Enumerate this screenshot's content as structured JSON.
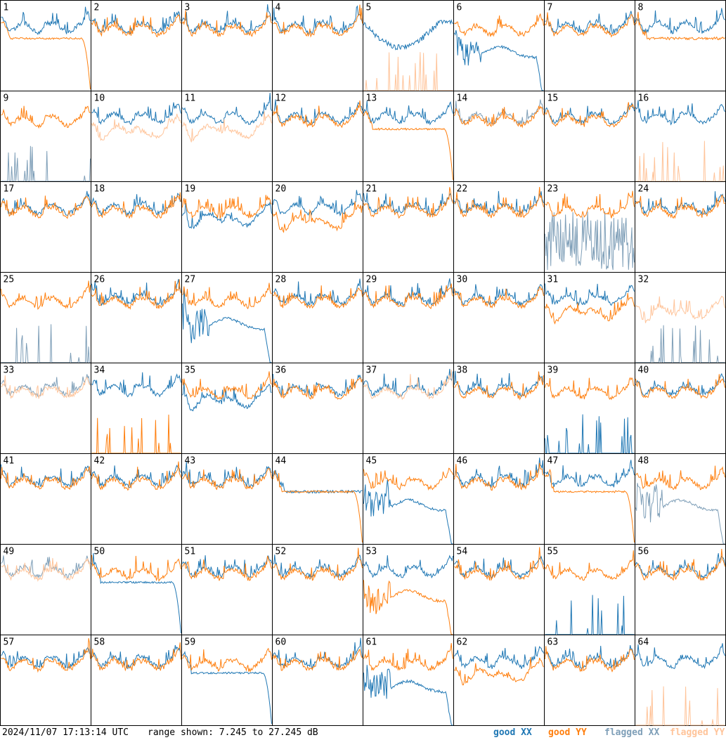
{
  "chart_data": {
    "type": "line",
    "layout": "8x8 small multiples",
    "footer": {
      "timestamp": "2024/11/07 17:13:14 UTC",
      "range_text": "range shown: 7.245 to 27.245 dB"
    },
    "ylim": [
      7.245,
      27.245
    ],
    "yunit": "dB",
    "legend": [
      {
        "label": "good XX",
        "color": "#1f77b4"
      },
      {
        "label": "good YY",
        "color": "#ff7f0e"
      },
      {
        "label": "flagged XX",
        "color": "#7f9fb8"
      },
      {
        "label": "flagged YY",
        "color": "#ffc49a"
      }
    ],
    "colors": {
      "good_xx": "#1f77b4",
      "good_yy": "#ff7f0e",
      "flagged_xx": "#7f9fb8",
      "flagged_yy": "#ffc49a"
    },
    "tiles": [
      {
        "id": "1",
        "xx": "good",
        "yy": "good",
        "xx_mode": "normal",
        "yy_mode": "rolloff"
      },
      {
        "id": "2",
        "xx": "good",
        "yy": "good",
        "xx_mode": "normal",
        "yy_mode": "normal"
      },
      {
        "id": "3",
        "xx": "good",
        "yy": "good",
        "xx_mode": "normal",
        "yy_mode": "normal"
      },
      {
        "id": "4",
        "xx": "good",
        "yy": "good",
        "xx_mode": "normal",
        "yy_mode": "normal"
      },
      {
        "id": "5",
        "xx": "good",
        "yy": "flagged",
        "xx_mode": "bowl",
        "yy_mode": "spikes"
      },
      {
        "id": "6",
        "xx": "good",
        "yy": "good",
        "xx_mode": "dip",
        "yy_mode": "normal"
      },
      {
        "id": "7",
        "xx": "good",
        "yy": "good",
        "xx_mode": "normal",
        "yy_mode": "normal"
      },
      {
        "id": "8",
        "xx": "good",
        "yy": "good",
        "xx_mode": "normal",
        "yy_mode": "flat"
      },
      {
        "id": "9",
        "xx": "flagged",
        "yy": "good",
        "xx_mode": "spikes",
        "yy_mode": "normal"
      },
      {
        "id": "10",
        "xx": "good",
        "yy": "flagged",
        "xx_mode": "normal",
        "yy_mode": "low"
      },
      {
        "id": "11",
        "xx": "good",
        "yy": "flagged",
        "xx_mode": "normal",
        "yy_mode": "low"
      },
      {
        "id": "12",
        "xx": "good",
        "yy": "good",
        "xx_mode": "normal",
        "yy_mode": "normal"
      },
      {
        "id": "13",
        "xx": "good",
        "yy": "good",
        "xx_mode": "normal",
        "yy_mode": "rolloff"
      },
      {
        "id": "14",
        "xx": "flagged",
        "yy": "good",
        "xx_mode": "normal",
        "yy_mode": "normal"
      },
      {
        "id": "15",
        "xx": "good",
        "yy": "good",
        "xx_mode": "normal",
        "yy_mode": "normal"
      },
      {
        "id": "16",
        "xx": "good",
        "yy": "flagged",
        "xx_mode": "normal",
        "yy_mode": "spikes"
      },
      {
        "id": "17",
        "xx": "good",
        "yy": "good",
        "xx_mode": "normal",
        "yy_mode": "normal"
      },
      {
        "id": "18",
        "xx": "good",
        "yy": "good",
        "xx_mode": "normal",
        "yy_mode": "normal"
      },
      {
        "id": "19",
        "xx": "good",
        "yy": "good",
        "xx_mode": "low",
        "yy_mode": "normal"
      },
      {
        "id": "20",
        "xx": "good",
        "yy": "good",
        "xx_mode": "normal",
        "yy_mode": "low"
      },
      {
        "id": "21",
        "xx": "good",
        "yy": "good",
        "xx_mode": "normal",
        "yy_mode": "normal"
      },
      {
        "id": "22",
        "xx": "good",
        "yy": "good",
        "xx_mode": "normal",
        "yy_mode": "normal"
      },
      {
        "id": "23",
        "xx": "flagged",
        "yy": "good",
        "xx_mode": "noise",
        "yy_mode": "normal"
      },
      {
        "id": "24",
        "xx": "good",
        "yy": "good",
        "xx_mode": "normal",
        "yy_mode": "normal"
      },
      {
        "id": "25",
        "xx": "flagged",
        "yy": "good",
        "xx_mode": "spikes",
        "yy_mode": "normal"
      },
      {
        "id": "26",
        "xx": "good",
        "yy": "good",
        "xx_mode": "normal",
        "yy_mode": "normal"
      },
      {
        "id": "27",
        "xx": "good",
        "yy": "good",
        "xx_mode": "dip",
        "yy_mode": "normal"
      },
      {
        "id": "28",
        "xx": "good",
        "yy": "good",
        "xx_mode": "normal",
        "yy_mode": "normal"
      },
      {
        "id": "29",
        "xx": "good",
        "yy": "good",
        "xx_mode": "normal",
        "yy_mode": "normal"
      },
      {
        "id": "30",
        "xx": "good",
        "yy": "good",
        "xx_mode": "normal",
        "yy_mode": "normal"
      },
      {
        "id": "31",
        "xx": "good",
        "yy": "good",
        "xx_mode": "normal",
        "yy_mode": "low"
      },
      {
        "id": "32",
        "xx": "flagged",
        "yy": "flagged",
        "xx_mode": "spikes",
        "yy_mode": "low"
      },
      {
        "id": "33",
        "xx": "flagged",
        "yy": "flagged",
        "xx_mode": "normal",
        "yy_mode": "normal"
      },
      {
        "id": "34",
        "xx": "good",
        "yy": "good",
        "xx_mode": "normal",
        "yy_mode": "spikes"
      },
      {
        "id": "35",
        "xx": "good",
        "yy": "good",
        "xx_mode": "low",
        "yy_mode": "normal"
      },
      {
        "id": "36",
        "xx": "good",
        "yy": "good",
        "xx_mode": "normal",
        "yy_mode": "normal"
      },
      {
        "id": "37",
        "xx": "good",
        "yy": "flagged",
        "xx_mode": "normal",
        "yy_mode": "normal"
      },
      {
        "id": "38",
        "xx": "good",
        "yy": "good",
        "xx_mode": "normal",
        "yy_mode": "normal"
      },
      {
        "id": "39",
        "xx": "good",
        "yy": "good",
        "xx_mode": "spikes",
        "yy_mode": "normal"
      },
      {
        "id": "40",
        "xx": "good",
        "yy": "good",
        "xx_mode": "normal",
        "yy_mode": "normal"
      },
      {
        "id": "41",
        "xx": "good",
        "yy": "good",
        "xx_mode": "normal",
        "yy_mode": "normal"
      },
      {
        "id": "42",
        "xx": "good",
        "yy": "good",
        "xx_mode": "normal",
        "yy_mode": "normal"
      },
      {
        "id": "43",
        "xx": "good",
        "yy": "good",
        "xx_mode": "normal",
        "yy_mode": "normal"
      },
      {
        "id": "44",
        "xx": "good",
        "yy": "good",
        "xx_mode": "flat",
        "yy_mode": "rolloff"
      },
      {
        "id": "45",
        "xx": "good",
        "yy": "good",
        "xx_mode": "dip",
        "yy_mode": "normal"
      },
      {
        "id": "46",
        "xx": "good",
        "yy": "good",
        "xx_mode": "normal",
        "yy_mode": "normal"
      },
      {
        "id": "47",
        "xx": "good",
        "yy": "good",
        "xx_mode": "normal",
        "yy_mode": "rolloff"
      },
      {
        "id": "48",
        "xx": "flagged",
        "yy": "good",
        "xx_mode": "dip",
        "yy_mode": "normal"
      },
      {
        "id": "49",
        "xx": "flagged",
        "yy": "flagged",
        "xx_mode": "normal",
        "yy_mode": "normal"
      },
      {
        "id": "50",
        "xx": "good",
        "yy": "good",
        "xx_mode": "rolloff",
        "yy_mode": "normal"
      },
      {
        "id": "51",
        "xx": "good",
        "yy": "good",
        "xx_mode": "normal",
        "yy_mode": "normal"
      },
      {
        "id": "52",
        "xx": "good",
        "yy": "good",
        "xx_mode": "normal",
        "yy_mode": "normal"
      },
      {
        "id": "53",
        "xx": "good",
        "yy": "good",
        "xx_mode": "normal",
        "yy_mode": "dip"
      },
      {
        "id": "54",
        "xx": "good",
        "yy": "good",
        "xx_mode": "normal",
        "yy_mode": "normal"
      },
      {
        "id": "55",
        "xx": "good",
        "yy": "good",
        "xx_mode": "spikes",
        "yy_mode": "normal"
      },
      {
        "id": "56",
        "xx": "good",
        "yy": "good",
        "xx_mode": "normal",
        "yy_mode": "normal"
      },
      {
        "id": "57",
        "xx": "good",
        "yy": "good",
        "xx_mode": "normal",
        "yy_mode": "normal"
      },
      {
        "id": "58",
        "xx": "good",
        "yy": "good",
        "xx_mode": "normal",
        "yy_mode": "normal"
      },
      {
        "id": "59",
        "xx": "good",
        "yy": "good",
        "xx_mode": "rolloff",
        "yy_mode": "normal"
      },
      {
        "id": "60",
        "xx": "good",
        "yy": "good",
        "xx_mode": "normal",
        "yy_mode": "normal"
      },
      {
        "id": "61",
        "xx": "good",
        "yy": "good",
        "xx_mode": "dip",
        "yy_mode": "normal"
      },
      {
        "id": "62",
        "xx": "good",
        "yy": "good",
        "xx_mode": "normal",
        "yy_mode": "low"
      },
      {
        "id": "63",
        "xx": "good",
        "yy": "good",
        "xx_mode": "normal",
        "yy_mode": "normal"
      },
      {
        "id": "64",
        "xx": "good",
        "yy": "flagged",
        "xx_mode": "normal",
        "yy_mode": "spikes"
      }
    ]
  }
}
